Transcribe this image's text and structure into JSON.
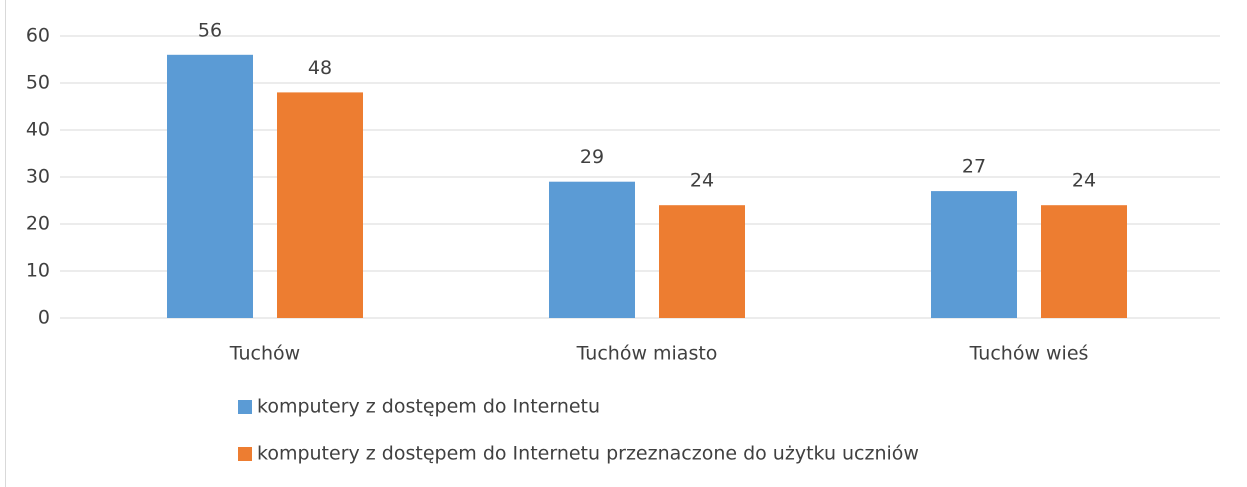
{
  "chart_data": {
    "type": "bar",
    "categories": [
      "Tuchów",
      "Tuchów miasto",
      "Tuchów wieś"
    ],
    "series": [
      {
        "name": "komputery z dostępem do Internetu",
        "color": "#5b9bd5",
        "values": [
          56,
          29,
          27
        ]
      },
      {
        "name": "komputery z dostępem do Internetu przeznaczone do użytku uczniów",
        "color": "#ed7d31",
        "values": [
          48,
          24,
          24
        ]
      }
    ],
    "ylim": [
      0,
      60
    ],
    "yticks": [
      0,
      10,
      20,
      30,
      40,
      50,
      60
    ],
    "grid": true,
    "legend": "bottom"
  }
}
